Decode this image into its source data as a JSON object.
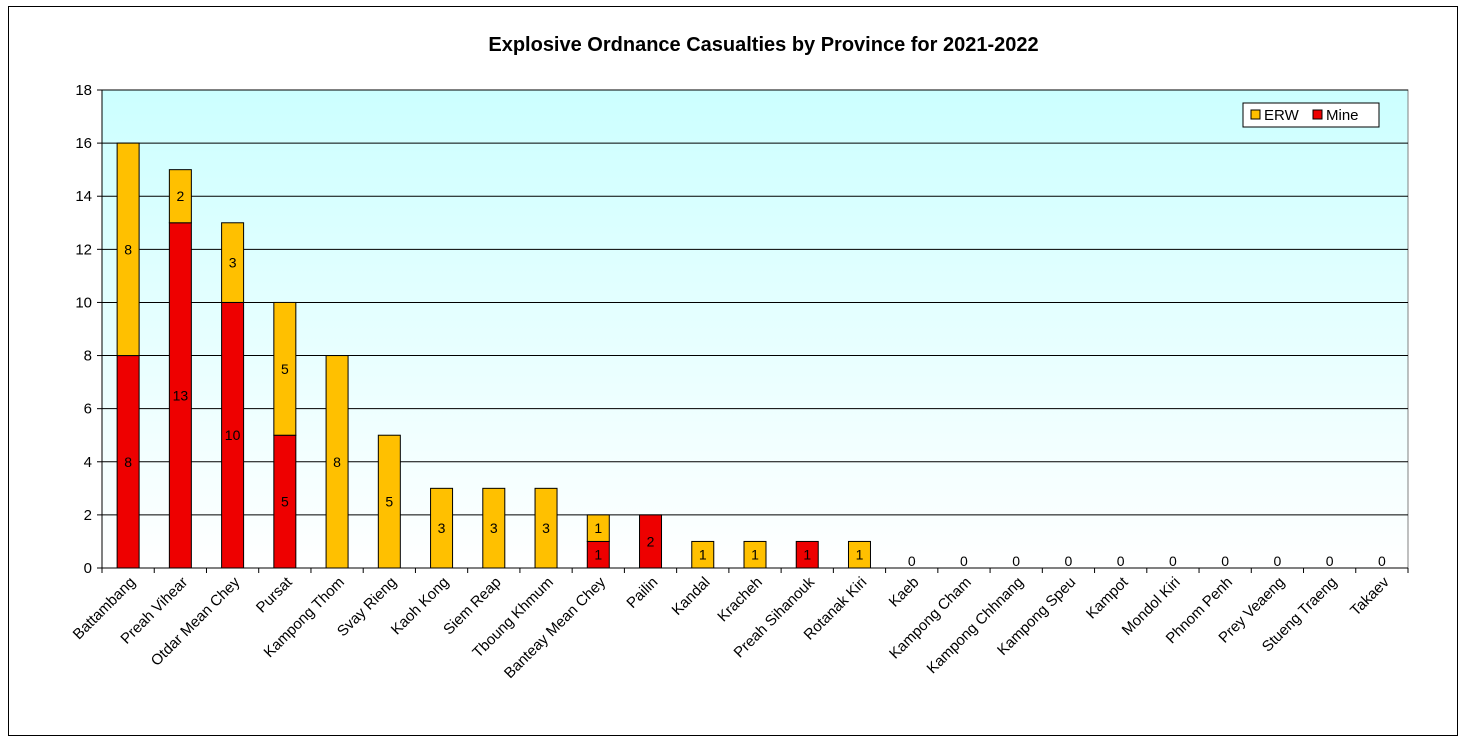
{
  "chart_data": {
    "type": "bar",
    "stacked": true,
    "title": "Explosive Ordnance Casualties by Province for 2021-2022",
    "xlabel": "",
    "ylabel": "",
    "ylim": [
      0,
      18
    ],
    "yticks": [
      0,
      2,
      4,
      6,
      8,
      10,
      12,
      14,
      16,
      18
    ],
    "grid": true,
    "legend_position": "top-right",
    "plot_background": "gradient light cyan to white",
    "categories": [
      "Battambang",
      "Preah Vihear",
      "Otdar Mean Chey",
      "Pursat",
      "Kampong Thom",
      "Svay Rieng",
      "Kaoh Kong",
      "Siem Reap",
      "Tboung Khmum",
      "Banteay Mean Chey",
      "Pailin",
      "Kandal",
      "Kracheh",
      "Preah Sihanouk",
      "Rotanak Kiri",
      "Kaeb",
      "Kampong Cham",
      "Kampong Chhnang",
      "Kampong Speu",
      "Kampot",
      "Mondol Kiri",
      "Phnom Penh",
      "Prey Veaeng",
      "Stueng Traeng",
      "Takaev"
    ],
    "series": [
      {
        "name": "Mine",
        "color": "#ee0000",
        "values": [
          8,
          13,
          10,
          5,
          0,
          0,
          0,
          0,
          0,
          1,
          2,
          0,
          0,
          1,
          0,
          0,
          0,
          0,
          0,
          0,
          0,
          0,
          0,
          0,
          0
        ]
      },
      {
        "name": "ERW",
        "color": "#ffc000",
        "values": [
          8,
          2,
          3,
          5,
          8,
          5,
          3,
          3,
          3,
          1,
          0,
          1,
          1,
          0,
          1,
          0,
          0,
          0,
          0,
          0,
          0,
          0,
          0,
          0,
          0
        ]
      }
    ],
    "legend_order": [
      "ERW",
      "Mine"
    ]
  }
}
